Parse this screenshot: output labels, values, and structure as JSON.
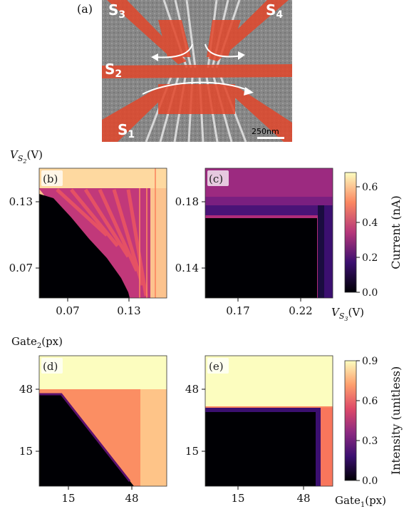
{
  "figure": {
    "panel_labels": [
      "(a)",
      "(b)",
      "(c)",
      "(d)",
      "(e)"
    ],
    "sem": {
      "gate_labels": [
        {
          "main": "S",
          "sub": "3"
        },
        {
          "main": "S",
          "sub": "4"
        },
        {
          "main": "S",
          "sub": "2"
        },
        {
          "main": "S",
          "sub": "1"
        }
      ],
      "scale_bar": "250nm",
      "colors": {
        "background": "#8a8a8a",
        "gate": "#e2472b"
      }
    },
    "top_row": {
      "y_axis_label": {
        "main": "V",
        "sub1": "S",
        "sub2": "2",
        "unit": "(V)"
      },
      "x_axis_label": {
        "main": "V",
        "sub1": "S",
        "sub2": "3",
        "unit": "(V)"
      },
      "colorbar": {
        "label": "Current (nA)",
        "ticks": [
          "0.0",
          "0.2",
          "0.4",
          "0.6"
        ],
        "max": 0.68
      }
    },
    "bottom_row": {
      "y_axis_label": {
        "main": "Gate",
        "sub": "2",
        "unit": "(px)"
      },
      "x_axis_label": {
        "main": "Gate",
        "sub": "1",
        "unit": "(px)"
      },
      "colorbar": {
        "label": "Intensity (unitless)",
        "ticks": [
          "0.0",
          "0.3",
          "0.6",
          "0.9"
        ],
        "max": 0.9
      }
    },
    "colormap": [
      "#000004",
      "#3b0f70",
      "#8c2981",
      "#de4968",
      "#fe9f6d",
      "#fcfdbf"
    ]
  },
  "chart_data": [
    {
      "type": "heatmap",
      "panel": "(b)",
      "x_ticks": [
        "0.07",
        "0.13"
      ],
      "y_ticks": [
        "0.13",
        "0.07"
      ],
      "xlim": [
        0.04,
        0.15
      ],
      "ylim": [
        0.04,
        0.15
      ],
      "value_range": [
        0.0,
        0.68
      ],
      "colorbar_label": "Current (nA)",
      "regions": [
        {
          "desc": "blockade below threshold diagonal",
          "value": 0.0
        },
        {
          "desc": "top band above V_S2 ~0.14",
          "value": 0.6
        },
        {
          "desc": "right band above V_S3 ~0.13",
          "value": 0.6
        },
        {
          "desc": "diagonal stripes between",
          "value": 0.3
        }
      ]
    },
    {
      "type": "heatmap",
      "panel": "(c)",
      "x_ticks": [
        "0.17",
        "0.22"
      ],
      "y_ticks": [
        "0.18",
        "0.14"
      ],
      "xlim": [
        0.15,
        0.24
      ],
      "ylim": [
        0.12,
        0.21
      ],
      "value_range": [
        0.0,
        0.68
      ],
      "colorbar_label": "Current (nA)",
      "regions": [
        {
          "desc": "blockade rectangle",
          "value": 0.0
        },
        {
          "desc": "top band",
          "value": 0.3
        },
        {
          "desc": "right edge band",
          "value": 0.12
        }
      ]
    },
    {
      "type": "heatmap",
      "panel": "(d)",
      "x_ticks": [
        "15",
        "48"
      ],
      "y_ticks": [
        "48",
        "15"
      ],
      "xlim": [
        0,
        64
      ],
      "ylim": [
        0,
        64
      ],
      "value_range": [
        0.0,
        0.9
      ],
      "colorbar_label": "Intensity (unitless)",
      "regions": [
        {
          "desc": "top band",
          "value": 0.9
        },
        {
          "desc": "right band",
          "value": 0.78
        },
        {
          "desc": "middle triangle",
          "value": 0.65
        },
        {
          "desc": "lower-left blockade",
          "value": 0.0
        }
      ]
    },
    {
      "type": "heatmap",
      "panel": "(e)",
      "x_ticks": [
        "15",
        "48"
      ],
      "y_ticks": [
        "48",
        "15"
      ],
      "xlim": [
        0,
        64
      ],
      "ylim": [
        0,
        64
      ],
      "value_range": [
        0.0,
        0.9
      ],
      "colorbar_label": "Intensity (unitless)",
      "regions": [
        {
          "desc": "top band",
          "value": 0.9
        },
        {
          "desc": "right band",
          "value": 0.65
        },
        {
          "desc": "blockade rectangle",
          "value": 0.0
        }
      ]
    }
  ]
}
